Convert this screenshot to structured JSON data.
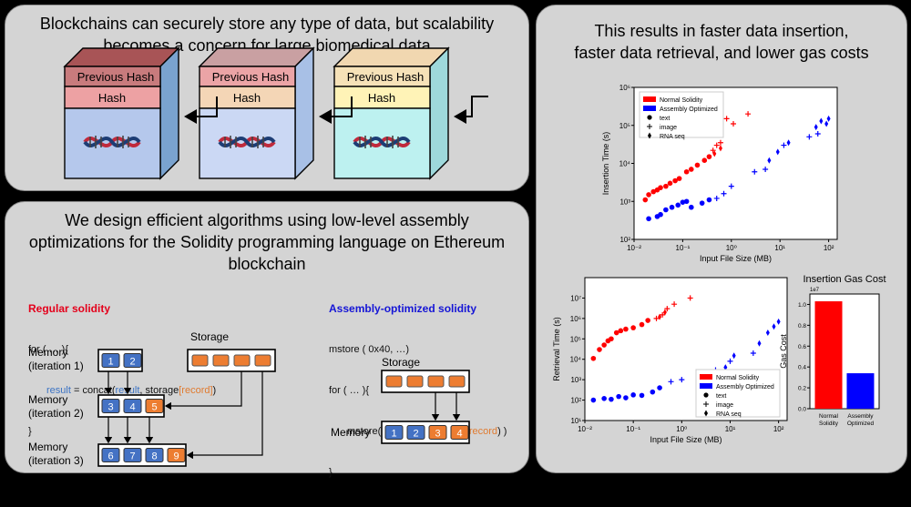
{
  "panel_blockchain": {
    "title": "Blockchains can securely store any type of data, but scalability becomes a concern for large biomedical data",
    "blocks": [
      {
        "prev": "Previous Hash",
        "hash": "Hash"
      },
      {
        "prev": "Previous Hash",
        "hash": "Hash"
      },
      {
        "prev": "Previous Hash",
        "hash": "Hash"
      }
    ]
  },
  "panel_algorithms": {
    "title": "We design efficient algorithms using low-level assembly optimizations for the Solidity programming language on Ethereum blockchain",
    "regular": {
      "heading": "Regular solidity",
      "line1": "for ( … ){",
      "line2_a": "result",
      "line2_b": " = concat(",
      "line2_c": "result",
      "line2_d": ", storage",
      "line2_e": "[record]",
      "line2_f": ")",
      "line3": "}"
    },
    "assembly": {
      "heading": "Assembly-optimized solidity",
      "line1": "mstore ( 0x40, …)",
      "line2": "for ( … ){",
      "line3_a": "mstore( mload( … ), sload (",
      "line3_b": "record",
      "line3_c": ") )",
      "line4": "}"
    },
    "storage_label": "Storage",
    "memory_label": "Memory",
    "mem1": {
      "label1": "Memory",
      "label2": "(iteration 1)",
      "cells": [
        "1",
        "2"
      ]
    },
    "mem2": {
      "label1": "Memory",
      "label2": "(iteration 2)",
      "cells": [
        "3",
        "4",
        "5"
      ]
    },
    "mem3": {
      "label1": "Memory",
      "label2": "(iteration 3)",
      "cells": [
        "6",
        "7",
        "8",
        "9"
      ]
    },
    "mem_opt": {
      "cells": [
        "1",
        "2",
        "3",
        "4"
      ]
    },
    "colors": {
      "blue_cell": "#4472c4",
      "orange_cell": "#ed7d31"
    }
  },
  "panel_results": {
    "title": "This results in faster data insertion, faster data retrieval, and lower gas costs"
  },
  "chart_data": [
    {
      "type": "scatter",
      "title": "",
      "xlabel": "Input File Size (MB)",
      "ylabel": "Insertion Time (s)",
      "xscale": "log",
      "yscale": "log",
      "xlim": [
        0.01,
        150
      ],
      "ylim": [
        100,
        1000000
      ],
      "xticks": [
        "10⁻²",
        "10⁻¹",
        "10⁰",
        "10¹",
        "10²"
      ],
      "yticks": [
        "10²",
        "10³",
        "10⁴",
        "10⁵",
        "10⁶",
        "10⁷",
        "10⁸"
      ],
      "legend": {
        "placement": "top-left",
        "series": [
          "Normal Solidity",
          "Assembly Optimized"
        ],
        "markers": [
          "text",
          "image",
          "RNA seq"
        ]
      },
      "series": [
        {
          "name": "Normal Solidity",
          "color": "#ff0000",
          "points": [
            {
              "x": 0.017,
              "y": 1100,
              "m": "text"
            },
            {
              "x": 0.02,
              "y": 1500,
              "m": "text"
            },
            {
              "x": 0.025,
              "y": 1800,
              "m": "text"
            },
            {
              "x": 0.03,
              "y": 2000,
              "m": "text"
            },
            {
              "x": 0.035,
              "y": 2300,
              "m": "text"
            },
            {
              "x": 0.045,
              "y": 2500,
              "m": "text"
            },
            {
              "x": 0.055,
              "y": 3000,
              "m": "text"
            },
            {
              "x": 0.07,
              "y": 3500,
              "m": "text"
            },
            {
              "x": 0.085,
              "y": 4000,
              "m": "text"
            },
            {
              "x": 0.12,
              "y": 6000,
              "m": "text"
            },
            {
              "x": 0.15,
              "y": 7000,
              "m": "text"
            },
            {
              "x": 0.2,
              "y": 9000,
              "m": "text"
            },
            {
              "x": 0.28,
              "y": 12000,
              "m": "text"
            },
            {
              "x": 0.35,
              "y": 15000,
              "m": "text"
            },
            {
              "x": 0.42,
              "y": 22000,
              "m": "image"
            },
            {
              "x": 0.5,
              "y": 30000,
              "m": "image"
            },
            {
              "x": 0.6,
              "y": 35000,
              "m": "image"
            },
            {
              "x": 0.8,
              "y": 150000,
              "m": "image"
            },
            {
              "x": 1.1,
              "y": 110000,
              "m": "image"
            },
            {
              "x": 2.2,
              "y": 200000,
              "m": "image"
            },
            {
              "x": 0.6,
              "y": 25000,
              "m": "rna"
            },
            {
              "x": 0.45,
              "y": 18000,
              "m": "rna"
            }
          ]
        },
        {
          "name": "Assembly Optimized",
          "color": "#0000ff",
          "points": [
            {
              "x": 0.02,
              "y": 350,
              "m": "text"
            },
            {
              "x": 0.03,
              "y": 400,
              "m": "text"
            },
            {
              "x": 0.035,
              "y": 450,
              "m": "text"
            },
            {
              "x": 0.045,
              "y": 600,
              "m": "text"
            },
            {
              "x": 0.06,
              "y": 700,
              "m": "text"
            },
            {
              "x": 0.08,
              "y": 800,
              "m": "text"
            },
            {
              "x": 0.1,
              "y": 950,
              "m": "text"
            },
            {
              "x": 0.12,
              "y": 1000,
              "m": "text"
            },
            {
              "x": 0.15,
              "y": 700,
              "m": "text"
            },
            {
              "x": 0.25,
              "y": 900,
              "m": "text"
            },
            {
              "x": 0.35,
              "y": 1100,
              "m": "text"
            },
            {
              "x": 0.5,
              "y": 1200,
              "m": "image"
            },
            {
              "x": 0.7,
              "y": 1600,
              "m": "image"
            },
            {
              "x": 1.0,
              "y": 2500,
              "m": "image"
            },
            {
              "x": 3,
              "y": 6000,
              "m": "image"
            },
            {
              "x": 5,
              "y": 7000,
              "m": "image"
            },
            {
              "x": 12,
              "y": 30000,
              "m": "image"
            },
            {
              "x": 40,
              "y": 50000,
              "m": "image"
            },
            {
              "x": 60,
              "y": 60000,
              "m": "image"
            },
            {
              "x": 6,
              "y": 12000,
              "m": "rna"
            },
            {
              "x": 9,
              "y": 20000,
              "m": "rna"
            },
            {
              "x": 15,
              "y": 35000,
              "m": "rna"
            },
            {
              "x": 55,
              "y": 90000,
              "m": "rna"
            },
            {
              "x": 70,
              "y": 130000,
              "m": "rna"
            },
            {
              "x": 90,
              "y": 110000,
              "m": "rna"
            },
            {
              "x": 100,
              "y": 150000,
              "m": "rna"
            }
          ]
        }
      ]
    },
    {
      "type": "scatter",
      "title": "",
      "xlabel": "Input File Size (MB)",
      "ylabel": "Retrieval Time (s)",
      "xscale": "log",
      "yscale": "log",
      "xlim": [
        0.01,
        150
      ],
      "ylim": [
        10,
        100000000
      ],
      "xticks": [
        "10⁻²",
        "10⁻¹",
        "10⁰",
        "10¹",
        "10²"
      ],
      "yticks": [
        "10¹",
        "10²",
        "10³",
        "10⁴",
        "10⁵",
        "10⁶",
        "10⁷"
      ],
      "legend": {
        "placement": "bottom-right",
        "series": [
          "Normal Solidity",
          "Assembly Optimized"
        ],
        "markers": [
          "text",
          "image",
          "RNA seq"
        ]
      },
      "series": [
        {
          "name": "Normal Solidity",
          "color": "#ff0000",
          "points": [
            {
              "x": 0.015,
              "y": 11000,
              "m": "text"
            },
            {
              "x": 0.02,
              "y": 30000,
              "m": "text"
            },
            {
              "x": 0.025,
              "y": 50000,
              "m": "text"
            },
            {
              "x": 0.03,
              "y": 80000,
              "m": "text"
            },
            {
              "x": 0.035,
              "y": 100000,
              "m": "text"
            },
            {
              "x": 0.045,
              "y": 200000,
              "m": "text"
            },
            {
              "x": 0.055,
              "y": 250000,
              "m": "text"
            },
            {
              "x": 0.07,
              "y": 300000,
              "m": "text"
            },
            {
              "x": 0.1,
              "y": 350000,
              "m": "text"
            },
            {
              "x": 0.15,
              "y": 500000,
              "m": "text"
            },
            {
              "x": 0.2,
              "y": 800000,
              "m": "text"
            },
            {
              "x": 0.3,
              "y": 1000000,
              "m": "image"
            },
            {
              "x": 0.4,
              "y": 1500000,
              "m": "image"
            },
            {
              "x": 0.5,
              "y": 3000000,
              "m": "image"
            },
            {
              "x": 0.7,
              "y": 5000000,
              "m": "image"
            },
            {
              "x": 1.5,
              "y": 10000000,
              "m": "image"
            },
            {
              "x": 0.35,
              "y": 1200000,
              "m": "rna"
            },
            {
              "x": 0.45,
              "y": 2000000,
              "m": "rna"
            }
          ]
        },
        {
          "name": "Assembly Optimized",
          "color": "#0000ff",
          "points": [
            {
              "x": 0.015,
              "y": 100,
              "m": "text"
            },
            {
              "x": 0.025,
              "y": 120,
              "m": "text"
            },
            {
              "x": 0.035,
              "y": 110,
              "m": "text"
            },
            {
              "x": 0.05,
              "y": 150,
              "m": "text"
            },
            {
              "x": 0.07,
              "y": 130,
              "m": "text"
            },
            {
              "x": 0.1,
              "y": 180,
              "m": "text"
            },
            {
              "x": 0.15,
              "y": 170,
              "m": "text"
            },
            {
              "x": 0.25,
              "y": 250,
              "m": "text"
            },
            {
              "x": 0.35,
              "y": 400,
              "m": "text"
            },
            {
              "x": 0.6,
              "y": 800,
              "m": "image"
            },
            {
              "x": 1.0,
              "y": 1000,
              "m": "image"
            },
            {
              "x": 3,
              "y": 2000,
              "m": "image"
            },
            {
              "x": 5,
              "y": 3000,
              "m": "image"
            },
            {
              "x": 10,
              "y": 8000,
              "m": "image"
            },
            {
              "x": 30,
              "y": 20000,
              "m": "image"
            },
            {
              "x": 8,
              "y": 4000,
              "m": "rna"
            },
            {
              "x": 12,
              "y": 15000,
              "m": "rna"
            },
            {
              "x": 40,
              "y": 60000,
              "m": "rna"
            },
            {
              "x": 60,
              "y": 200000,
              "m": "rna"
            },
            {
              "x": 80,
              "y": 400000,
              "m": "rna"
            },
            {
              "x": 100,
              "y": 700000,
              "m": "rna"
            }
          ]
        }
      ]
    },
    {
      "type": "bar",
      "title": "Insertion Gas Cost",
      "xlabel": "",
      "ylabel": "Gas Cost",
      "yscale_note": "1e7",
      "ylim": [
        0,
        1.1
      ],
      "yticks": [
        "0.0",
        "0.2",
        "0.4",
        "0.6",
        "0.8",
        "1.0"
      ],
      "categories": [
        "Normal Solidity",
        "Assembly Optimized"
      ],
      "values": [
        1.03,
        0.34
      ],
      "colors": [
        "#ff0000",
        "#0000ff"
      ]
    }
  ]
}
